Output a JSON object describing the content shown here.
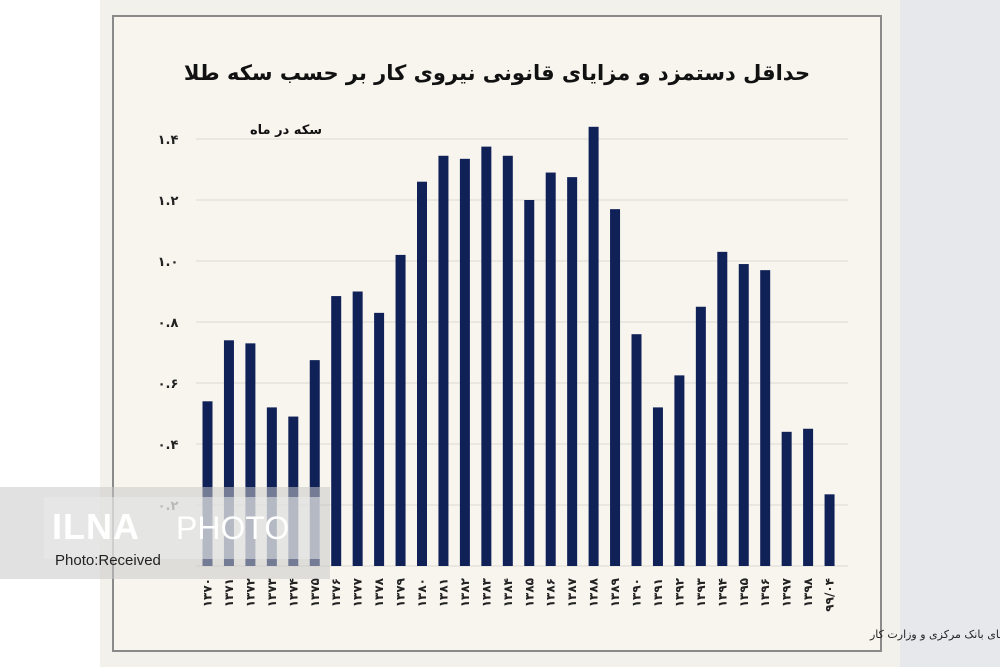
{
  "chart_data": {
    "type": "bar",
    "title": "حداقل دستمزد و مزایای قانونی نیروی کار بر حسب سکه طلا",
    "ylabel": "سکه در ماه",
    "xlabel": "",
    "ylim": [
      0,
      1.5
    ],
    "yticks": [
      0.2,
      0.4,
      0.6,
      0.8,
      1.0,
      1.2,
      1.4
    ],
    "ytick_labels": [
      "۰.۲",
      "۰.۴",
      "۰.۶",
      "۰.۸",
      "۱.۰",
      "۱.۲",
      "۱.۴"
    ],
    "grid": "horizontal",
    "bar_color": "#0f2157",
    "categories": [
      "۱۳۷۰",
      "۱۳۷۱",
      "۱۳۷۲",
      "۱۳۷۳",
      "۱۳۷۴",
      "۱۳۷۵",
      "۱۳۷۶",
      "۱۳۷۷",
      "۱۳۷۸",
      "۱۳۷۹",
      "۱۳۸۰",
      "۱۳۸۱",
      "۱۳۸۲",
      "۱۳۸۳",
      "۱۳۸۴",
      "۱۳۸۵",
      "۱۳۸۶",
      "۱۳۸۷",
      "۱۳۸۸",
      "۱۳۸۹",
      "۱۳۹۰",
      "۱۳۹۱",
      "۱۳۹۲",
      "۱۳۹۳",
      "۱۳۹۴",
      "۱۳۹۵",
      "۱۳۹۶",
      "۱۳۹۷",
      "۱۳۹۸",
      "۹۹/۰۴"
    ],
    "values": [
      0.54,
      0.74,
      0.73,
      0.52,
      0.49,
      0.675,
      0.885,
      0.9,
      0.83,
      1.02,
      1.26,
      1.345,
      1.335,
      1.375,
      1.345,
      1.2,
      1.29,
      1.275,
      1.44,
      1.17,
      0.76,
      0.52,
      0.625,
      0.85,
      1.03,
      0.99,
      0.97,
      0.44,
      0.45,
      0.235
    ],
    "source_note": "تحلیل و استنتاج: احسان سلطانی بر اساس داده های بانک مرکزی و وزارت کار"
  },
  "watermark": {
    "brand": "ILNA",
    "photo": "PHOTO",
    "credit": "Photo:Received"
  }
}
